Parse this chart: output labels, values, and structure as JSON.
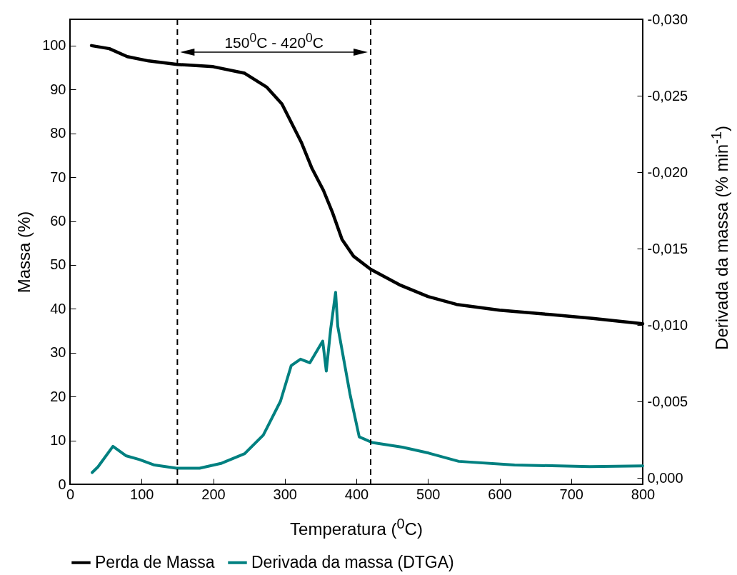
{
  "chart_data": {
    "type": "line",
    "xlabel": "Temperatura ($^{0}$C)",
    "ylabel": "Massa (%)",
    "y2label": "Derivada da massa (% min$^{-1}$)",
    "xlim": [
      0,
      800
    ],
    "xticks": [
      0,
      100,
      200,
      300,
      400,
      500,
      600,
      700,
      800
    ],
    "ylim": [
      0,
      106
    ],
    "yticks": [
      0,
      10,
      20,
      30,
      40,
      50,
      60,
      70,
      80,
      90,
      100
    ],
    "y2lim": [
      0.0004,
      -0.03
    ],
    "y2ticks": [
      {
        "value": 0,
        "label": "0,000"
      },
      {
        "value": -0.005,
        "label": "-0,005"
      },
      {
        "value": -0.01,
        "label": "-0,010"
      },
      {
        "value": -0.015,
        "label": "-0,015"
      },
      {
        "value": -0.02,
        "label": "-0,020"
      },
      {
        "value": -0.025,
        "label": "-0,025"
      },
      {
        "value": -0.03,
        "label": "-0,030"
      }
    ],
    "grid": false,
    "legend": "bottom",
    "marker": "none",
    "line_style": "solid",
    "series": [
      {
        "name": "Perda de Massa",
        "color": "#000000",
        "x": [
          30,
          55,
          80,
          110,
          150,
          200,
          244,
          275,
          296,
          323,
          338,
          354,
          367,
          380,
          396,
          420,
          460,
          500,
          540,
          600,
          670,
          730,
          800
        ],
        "values": [
          100,
          99.3,
          97.5,
          96.5,
          95.7,
          95.2,
          93.7,
          90.5,
          86.7,
          78,
          72,
          67,
          61.8,
          55.8,
          52,
          49,
          45.5,
          42.8,
          41,
          39.7,
          38.7,
          37.8,
          36.6
        ]
      },
      {
        "name": "Derivada da massa (DTGA)",
        "color": "#008080",
        "axis": "y2",
        "x": [
          31,
          39,
          60,
          78,
          97,
          118,
          149,
          181,
          212,
          244,
          270,
          294,
          309,
          322,
          335,
          353,
          358,
          364,
          371,
          374,
          391,
          404,
          422,
          464,
          501,
          543,
          621,
          726,
          800
        ],
        "values": [
          -0.00037,
          -0.00073,
          -0.00208,
          -0.00147,
          -0.00122,
          -0.00086,
          -0.00065,
          -0.00065,
          -0.00098,
          -0.0016,
          -0.00282,
          -0.00503,
          -0.00736,
          -0.00778,
          -0.00754,
          -0.00896,
          -0.007,
          -0.0097,
          -0.01215,
          -0.00994,
          -0.00552,
          -0.0027,
          -0.00233,
          -0.00203,
          -0.00164,
          -0.0011,
          -0.00086,
          -0.00076,
          -0.0008
        ]
      }
    ],
    "ref_lines": [
      {
        "axis": "x",
        "value": 150,
        "line_style": "dashed",
        "color": "#000000"
      },
      {
        "axis": "x",
        "value": 420,
        "line_style": "dashed",
        "color": "#000000"
      }
    ],
    "annotations": [
      "150$^{0}$C - 420$^{0}$C"
    ]
  }
}
